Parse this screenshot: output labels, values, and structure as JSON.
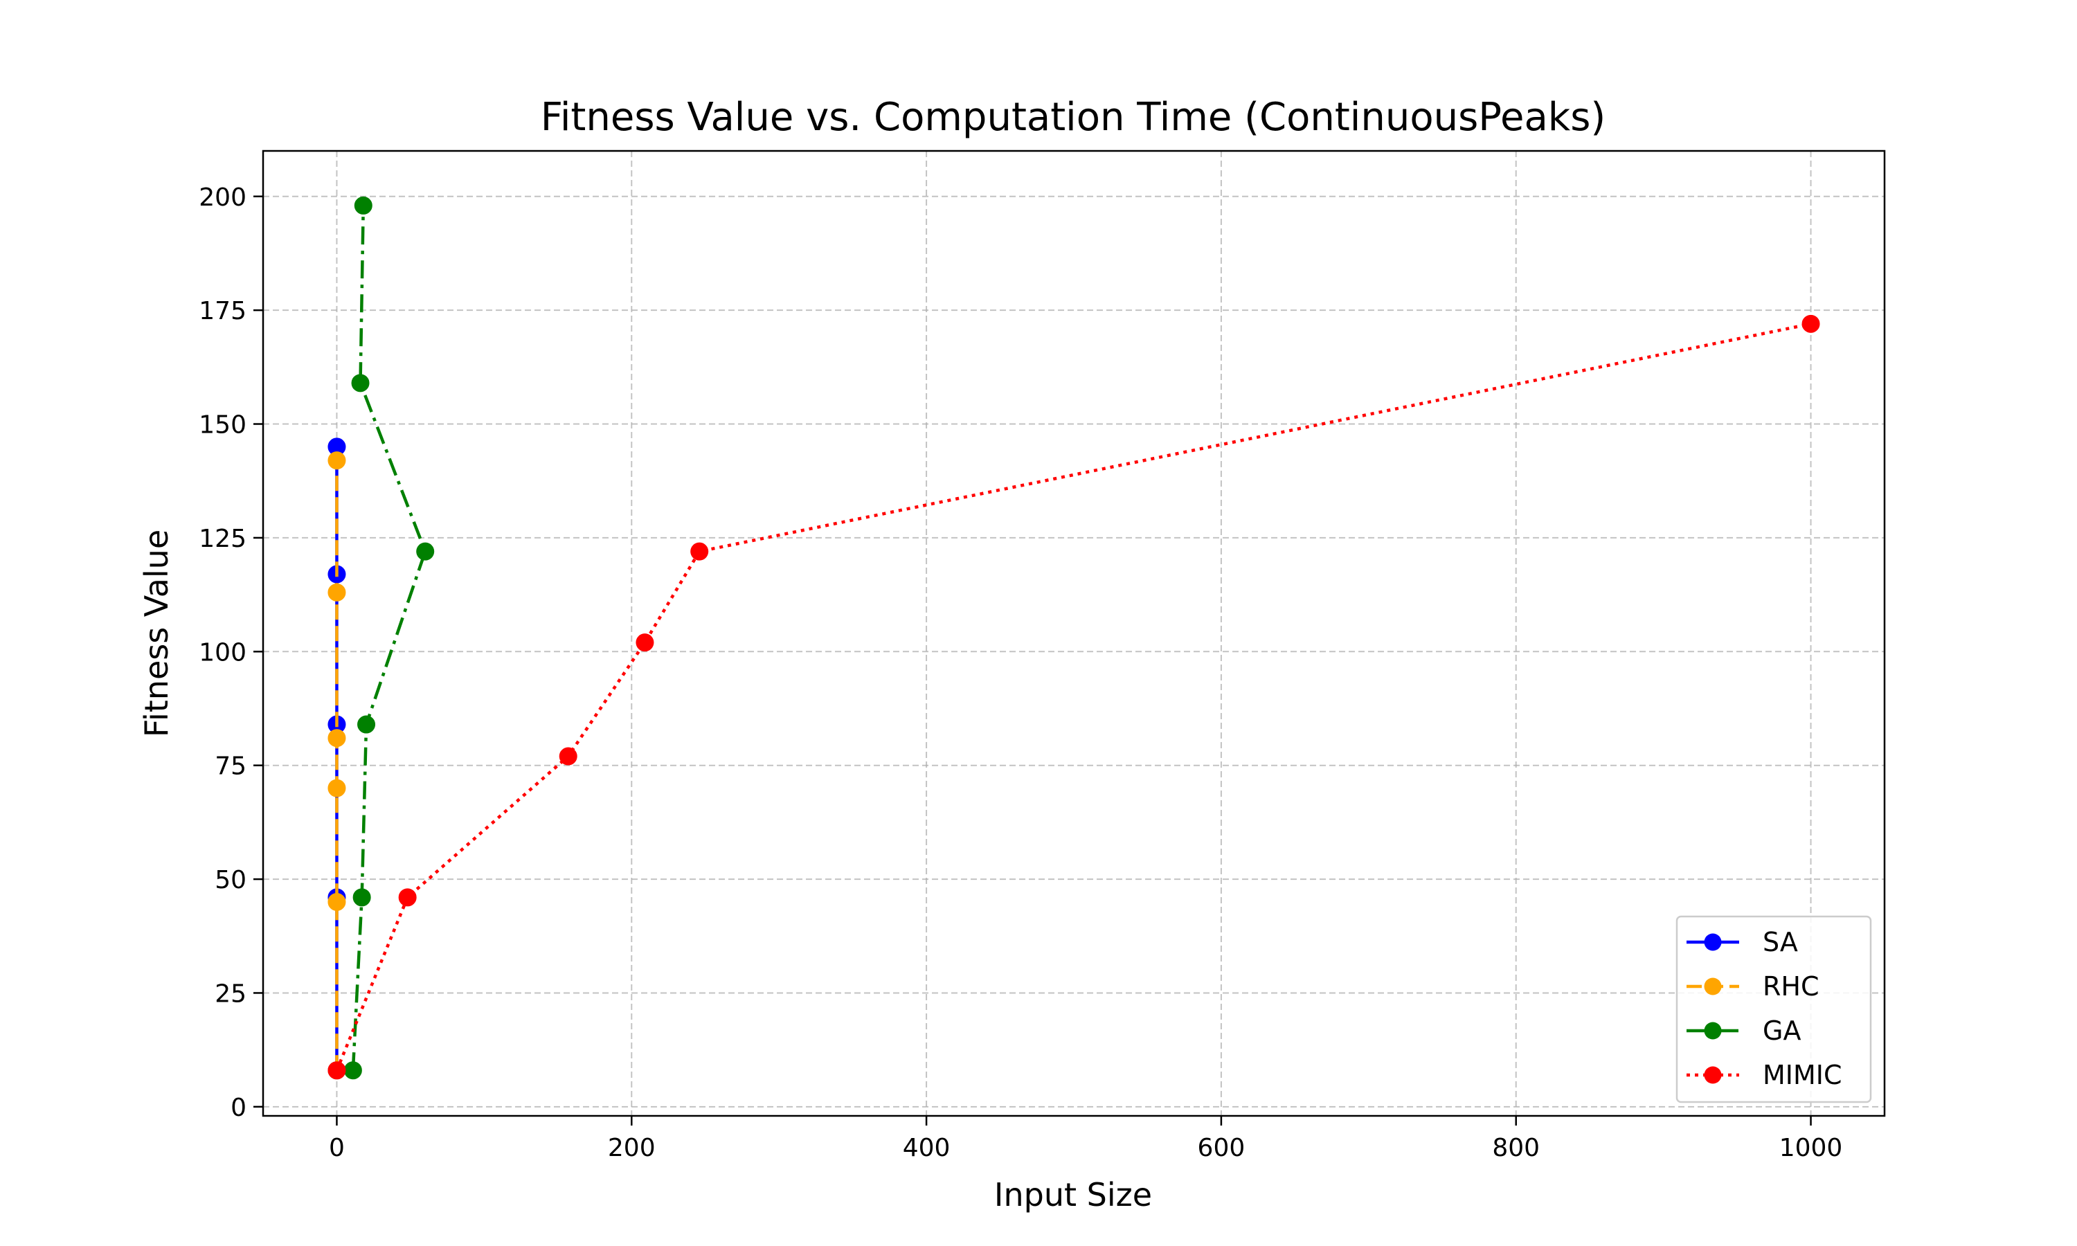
{
  "chart_data": {
    "type": "line",
    "title": "Fitness Value vs. Computation Time (ContinuousPeaks)",
    "xlabel": "Input Size",
    "ylabel": "Fitness Value",
    "xlim": [
      -50,
      1050
    ],
    "ylim": [
      -2,
      210
    ],
    "x_ticks": [
      0,
      200,
      400,
      600,
      800,
      1000
    ],
    "y_ticks": [
      0,
      25,
      50,
      75,
      100,
      125,
      150,
      175,
      200
    ],
    "grid": true,
    "legend_position": "bottom-right",
    "series": [
      {
        "name": "SA",
        "color": "#0000ff",
        "line_style": "solid",
        "marker": "circle",
        "points": [
          [
            0,
            8
          ],
          [
            0,
            46
          ],
          [
            0,
            84
          ],
          [
            0,
            117
          ],
          [
            0,
            145
          ]
        ]
      },
      {
        "name": "RHC",
        "color": "#ffa500",
        "line_style": "dashed",
        "marker": "circle",
        "points": [
          [
            0,
            8
          ],
          [
            0,
            45
          ],
          [
            0,
            70
          ],
          [
            0,
            81
          ],
          [
            0,
            113
          ],
          [
            0,
            142
          ]
        ]
      },
      {
        "name": "GA",
        "color": "#008000",
        "line_style": "dashdot",
        "marker": "circle",
        "points": [
          [
            11,
            8
          ],
          [
            17,
            46
          ],
          [
            20,
            84
          ],
          [
            60,
            122
          ],
          [
            16,
            159
          ],
          [
            18,
            198
          ]
        ]
      },
      {
        "name": "MIMIC",
        "color": "#ff0000",
        "line_style": "dotted",
        "marker": "circle",
        "points": [
          [
            0,
            8
          ],
          [
            48,
            46
          ],
          [
            157,
            77
          ],
          [
            209,
            102
          ],
          [
            246,
            122
          ],
          [
            1000,
            172
          ]
        ]
      }
    ]
  }
}
